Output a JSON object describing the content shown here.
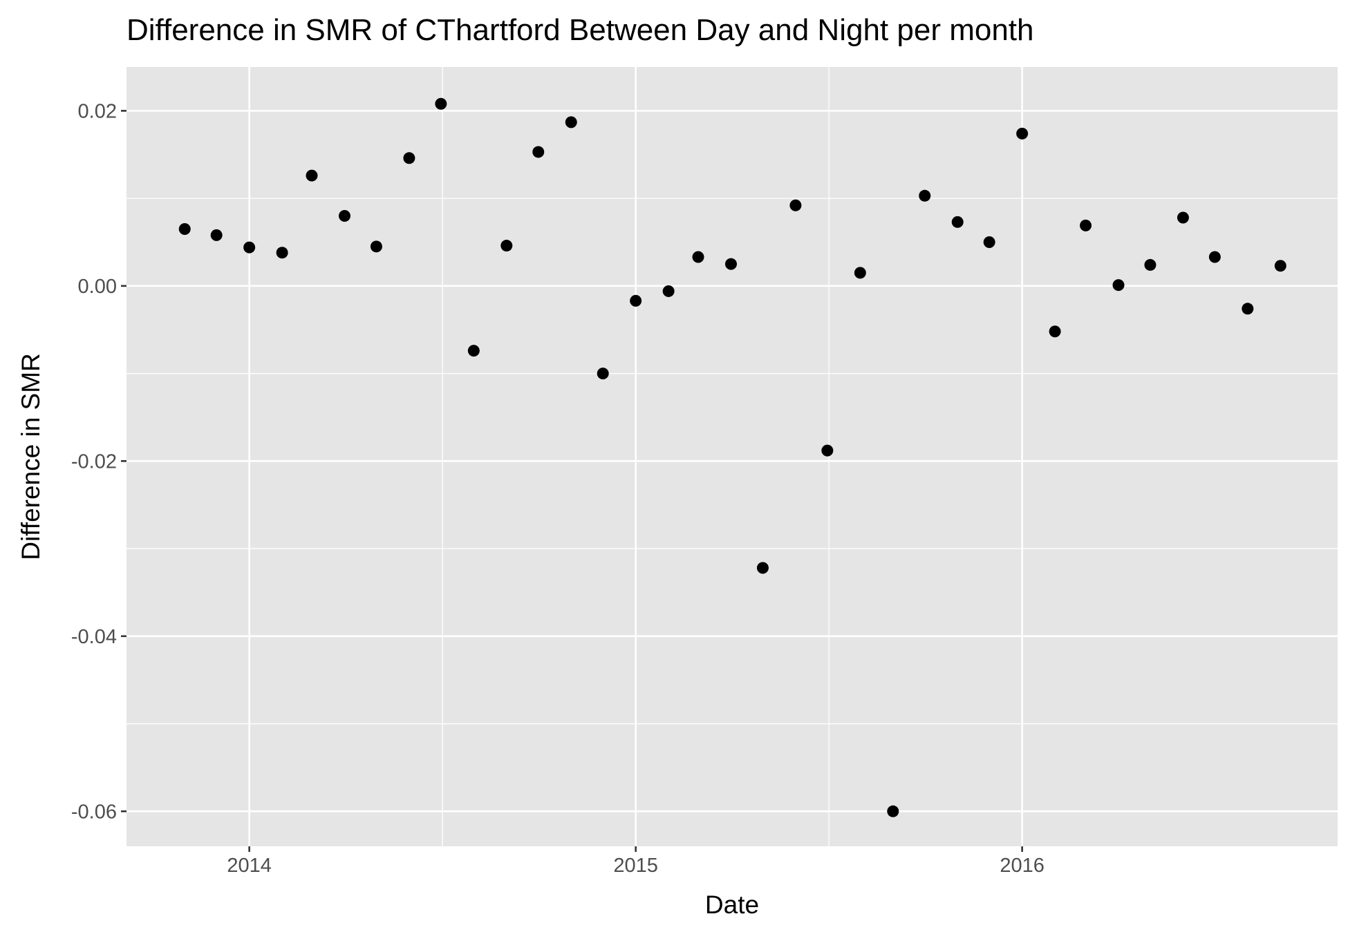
{
  "chart_data": {
    "type": "scatter",
    "title": "Difference in SMR of CThartford Between Day and Night per month",
    "xlabel": "Date",
    "ylabel": "Difference in SMR",
    "xlim": [
      "2013-09-07",
      "2016-10-25"
    ],
    "ylim": [
      -0.064,
      0.025
    ],
    "x_ticks": [
      {
        "value": "2014-01-01",
        "label": "2014"
      },
      {
        "value": "2015-01-01",
        "label": "2015"
      },
      {
        "value": "2016-01-01",
        "label": "2016"
      }
    ],
    "y_ticks": [
      {
        "value": 0.02,
        "label": "0.02"
      },
      {
        "value": 0.0,
        "label": "0.00"
      },
      {
        "value": -0.02,
        "label": "-0.02"
      },
      {
        "value": -0.04,
        "label": "-0.04"
      },
      {
        "value": -0.06,
        "label": "-0.06"
      }
    ],
    "grid": true,
    "background_color": "#e5e5e5",
    "grid_color": "#ffffff",
    "point_color": "#000000",
    "points": [
      {
        "x": "2013-11-01",
        "y": 0.0065
      },
      {
        "x": "2013-12-01",
        "y": 0.0058
      },
      {
        "x": "2014-01-01",
        "y": 0.0044
      },
      {
        "x": "2014-02-01",
        "y": 0.0038
      },
      {
        "x": "2014-03-01",
        "y": 0.0126
      },
      {
        "x": "2014-04-01",
        "y": 0.008
      },
      {
        "x": "2014-05-01",
        "y": 0.0045
      },
      {
        "x": "2014-06-01",
        "y": 0.0146
      },
      {
        "x": "2014-07-01",
        "y": 0.0208
      },
      {
        "x": "2014-08-01",
        "y": -0.0074
      },
      {
        "x": "2014-09-01",
        "y": 0.0046
      },
      {
        "x": "2014-10-01",
        "y": 0.0153
      },
      {
        "x": "2014-11-01",
        "y": 0.0187
      },
      {
        "x": "2014-12-01",
        "y": -0.01
      },
      {
        "x": "2015-01-01",
        "y": -0.0017
      },
      {
        "x": "2015-02-01",
        "y": -0.0006
      },
      {
        "x": "2015-03-01",
        "y": 0.0033
      },
      {
        "x": "2015-04-01",
        "y": 0.0025
      },
      {
        "x": "2015-05-01",
        "y": -0.0322
      },
      {
        "x": "2015-06-01",
        "y": 0.0092
      },
      {
        "x": "2015-07-01",
        "y": -0.0188
      },
      {
        "x": "2015-08-01",
        "y": 0.0015
      },
      {
        "x": "2015-09-01",
        "y": -0.06
      },
      {
        "x": "2015-10-01",
        "y": 0.0103
      },
      {
        "x": "2015-11-01",
        "y": 0.0073
      },
      {
        "x": "2015-12-01",
        "y": 0.005
      },
      {
        "x": "2016-01-01",
        "y": 0.0174
      },
      {
        "x": "2016-02-01",
        "y": -0.0052
      },
      {
        "x": "2016-03-01",
        "y": 0.0069
      },
      {
        "x": "2016-04-01",
        "y": 0.0001
      },
      {
        "x": "2016-05-01",
        "y": 0.0024
      },
      {
        "x": "2016-06-01",
        "y": 0.0078
      },
      {
        "x": "2016-07-01",
        "y": 0.0033
      },
      {
        "x": "2016-08-01",
        "y": -0.0026
      },
      {
        "x": "2016-09-01",
        "y": 0.0023
      }
    ]
  }
}
